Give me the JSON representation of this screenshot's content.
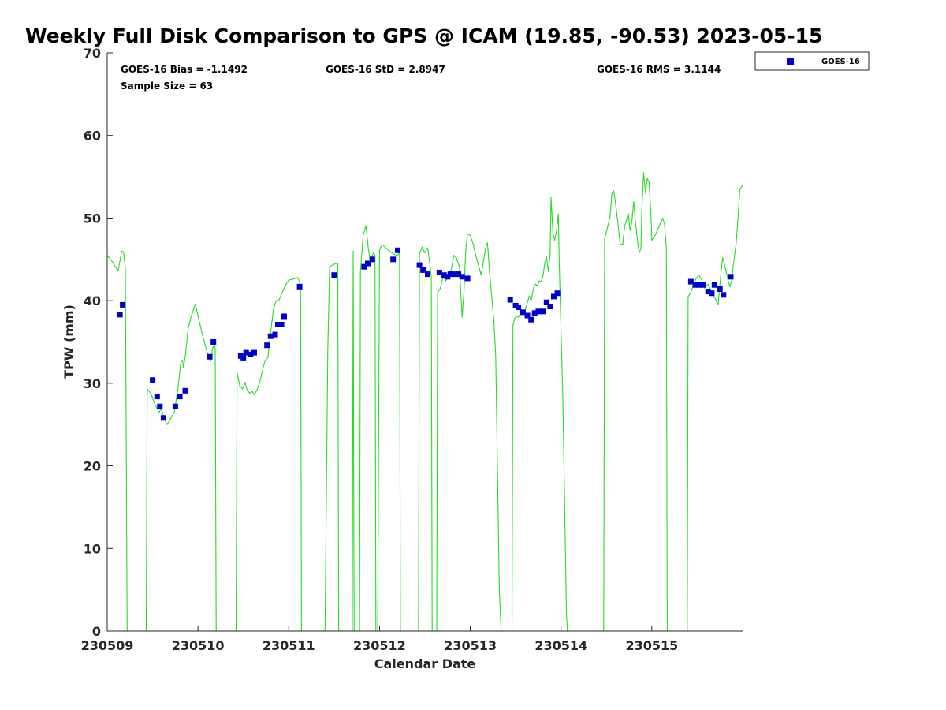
{
  "chart_data": {
    "type": "scatter",
    "title": "Weekly Full Disk Comparison to GPS @ ICAM (19.85, -90.53) 2023-05-15",
    "xlabel": "Calendar Date",
    "ylabel": "TPW (mm)",
    "xlim": [
      0,
      7
    ],
    "ylim": [
      0,
      70
    ],
    "x_ticks": [
      {
        "value": 0,
        "label": "230509"
      },
      {
        "value": 1,
        "label": "230510"
      },
      {
        "value": 2,
        "label": "230511"
      },
      {
        "value": 3,
        "label": "230512"
      },
      {
        "value": 4,
        "label": "230513"
      },
      {
        "value": 5,
        "label": "230514"
      },
      {
        "value": 6,
        "label": "230515"
      }
    ],
    "y_ticks": [
      0,
      10,
      20,
      30,
      40,
      50,
      60,
      70
    ],
    "stats": {
      "bias": "GOES-16 Bias = -1.1492",
      "std": "GOES-16 StD = 2.8947",
      "rms": "GOES-16 RMS = 3.1144",
      "sample": "Sample Size = 63"
    },
    "legend": {
      "placement": "top-right-outside",
      "entries": [
        "GOES-16"
      ]
    },
    "colors": {
      "goes": "#0000cc",
      "gps_line": "#22dd22"
    },
    "series": [
      {
        "name": "GOES-16",
        "marker": "square",
        "points": [
          [
            0.14,
            38.3
          ],
          [
            0.17,
            39.5
          ],
          [
            0.5,
            30.4
          ],
          [
            0.55,
            28.4
          ],
          [
            0.58,
            27.2
          ],
          [
            0.62,
            25.8
          ],
          [
            0.75,
            27.2
          ],
          [
            0.8,
            28.4
          ],
          [
            0.86,
            29.1
          ],
          [
            1.13,
            33.2
          ],
          [
            1.17,
            35.0
          ],
          [
            1.47,
            33.3
          ],
          [
            1.5,
            33.1
          ],
          [
            1.53,
            33.7
          ],
          [
            1.58,
            33.5
          ],
          [
            1.62,
            33.7
          ],
          [
            1.76,
            34.6
          ],
          [
            1.8,
            35.7
          ],
          [
            1.85,
            35.9
          ],
          [
            1.88,
            37.1
          ],
          [
            1.92,
            37.1
          ],
          [
            1.95,
            38.1
          ],
          [
            2.12,
            41.7
          ],
          [
            2.5,
            43.1
          ],
          [
            2.83,
            44.1
          ],
          [
            2.87,
            44.5
          ],
          [
            2.92,
            45.0
          ],
          [
            3.15,
            45.0
          ],
          [
            3.2,
            46.1
          ],
          [
            3.44,
            44.3
          ],
          [
            3.48,
            43.7
          ],
          [
            3.53,
            43.2
          ],
          [
            3.66,
            43.4
          ],
          [
            3.71,
            43.1
          ],
          [
            3.75,
            42.9
          ],
          [
            3.78,
            43.2
          ],
          [
            3.82,
            43.2
          ],
          [
            3.87,
            43.2
          ],
          [
            3.91,
            42.9
          ],
          [
            3.97,
            42.7
          ],
          [
            4.44,
            40.1
          ],
          [
            4.5,
            39.4
          ],
          [
            4.53,
            39.2
          ],
          [
            4.58,
            38.6
          ],
          [
            4.63,
            38.2
          ],
          [
            4.67,
            37.7
          ],
          [
            4.71,
            38.5
          ],
          [
            4.75,
            38.7
          ],
          [
            4.8,
            38.7
          ],
          [
            4.84,
            39.8
          ],
          [
            4.88,
            39.3
          ],
          [
            4.92,
            40.5
          ],
          [
            4.96,
            40.9
          ],
          [
            6.43,
            42.3
          ],
          [
            6.48,
            41.9
          ],
          [
            6.52,
            41.9
          ],
          [
            6.57,
            41.9
          ],
          [
            6.62,
            41.1
          ],
          [
            6.66,
            40.9
          ],
          [
            6.69,
            41.9
          ],
          [
            6.75,
            41.4
          ],
          [
            6.79,
            40.7
          ],
          [
            6.87,
            42.9
          ]
        ]
      },
      {
        "marker": "line",
        "segments": [
          [
            [
              0.0,
              45.5
            ],
            [
              0.05,
              44.8
            ],
            [
              0.12,
              43.6
            ],
            [
              0.16,
              46.0
            ],
            [
              0.18,
              45.9
            ],
            [
              0.2,
              44.0
            ],
            [
              0.22,
              0.0
            ]
          ],
          [
            [
              0.43,
              0.0
            ],
            [
              0.44,
              29.3
            ],
            [
              0.48,
              28.8
            ],
            [
              0.52,
              27.6
            ],
            [
              0.55,
              26.9
            ],
            [
              0.57,
              26.4
            ],
            [
              0.59,
              26.9
            ],
            [
              0.61,
              26.5
            ],
            [
              0.63,
              25.7
            ],
            [
              0.66,
              25.0
            ],
            [
              0.7,
              25.8
            ],
            [
              0.74,
              26.5
            ],
            [
              0.76,
              28.0
            ],
            [
              0.78,
              29.4
            ],
            [
              0.81,
              32.5
            ],
            [
              0.83,
              32.8
            ],
            [
              0.84,
              31.9
            ],
            [
              0.86,
              33.3
            ],
            [
              0.89,
              36.5
            ],
            [
              0.92,
              37.9
            ],
            [
              0.95,
              38.9
            ],
            [
              0.97,
              39.6
            ],
            [
              1.0,
              38.2
            ],
            [
              1.05,
              35.8
            ],
            [
              1.1,
              33.8
            ],
            [
              1.14,
              32.7
            ],
            [
              1.16,
              34.2
            ],
            [
              1.18,
              34.8
            ],
            [
              1.19,
              34.2
            ],
            [
              1.2,
              0.0
            ]
          ],
          [
            [
              1.42,
              0.0
            ],
            [
              1.43,
              31.3
            ],
            [
              1.46,
              29.7
            ],
            [
              1.49,
              29.3
            ],
            [
              1.52,
              30.1
            ],
            [
              1.54,
              29.2
            ],
            [
              1.57,
              28.8
            ],
            [
              1.6,
              29.0
            ],
            [
              1.62,
              28.6
            ],
            [
              1.65,
              29.2
            ],
            [
              1.68,
              30.1
            ],
            [
              1.71,
              31.5
            ],
            [
              1.74,
              32.8
            ],
            [
              1.77,
              33.1
            ],
            [
              1.8,
              36.1
            ],
            [
              1.83,
              38.9
            ],
            [
              1.86,
              40.0
            ],
            [
              1.89,
              40.0
            ],
            [
              1.92,
              40.8
            ],
            [
              1.96,
              41.8
            ],
            [
              2.0,
              42.5
            ],
            [
              2.05,
              42.6
            ],
            [
              2.1,
              42.8
            ],
            [
              2.13,
              41.9
            ],
            [
              2.14,
              0.0
            ]
          ],
          [
            [
              2.4,
              0.0
            ],
            [
              2.43,
              34.0
            ],
            [
              2.45,
              44.1
            ],
            [
              2.48,
              44.3
            ],
            [
              2.52,
              44.5
            ],
            [
              2.54,
              44.5
            ],
            [
              2.55,
              0.0
            ]
          ],
          [
            [
              2.7,
              0.0
            ],
            [
              2.71,
              46.0
            ],
            [
              2.72,
              0.0
            ]
          ],
          [
            [
              2.78,
              0.0
            ],
            [
              2.79,
              43.5
            ],
            [
              2.82,
              47.9
            ],
            [
              2.85,
              49.1
            ],
            [
              2.88,
              46.0
            ],
            [
              2.9,
              44.7
            ],
            [
              2.93,
              45.8
            ],
            [
              2.95,
              45.5
            ],
            [
              2.96,
              0.0
            ]
          ],
          [
            [
              2.98,
              0.0
            ],
            [
              3.0,
              46.2
            ],
            [
              3.03,
              46.8
            ],
            [
              3.06,
              46.5
            ],
            [
              3.1,
              46.1
            ],
            [
              3.15,
              45.7
            ],
            [
              3.2,
              45.4
            ],
            [
              3.22,
              46.1
            ],
            [
              3.23,
              0.0
            ]
          ],
          [
            [
              3.43,
              0.0
            ],
            [
              3.44,
              45.7
            ],
            [
              3.47,
              46.5
            ],
            [
              3.5,
              45.8
            ],
            [
              3.53,
              46.4
            ],
            [
              3.55,
              44.8
            ],
            [
              3.57,
              42.9
            ],
            [
              3.58,
              0.0
            ]
          ],
          [
            [
              3.63,
              0.0
            ],
            [
              3.64,
              41.0
            ],
            [
              3.67,
              41.5
            ],
            [
              3.7,
              42.9
            ],
            [
              3.73,
              42.4
            ],
            [
              3.76,
              42.9
            ],
            [
              3.79,
              43.8
            ],
            [
              3.82,
              45.5
            ],
            [
              3.85,
              45.1
            ],
            [
              3.88,
              44.1
            ],
            [
              3.9,
              40.0
            ],
            [
              3.91,
              38.0
            ],
            [
              3.93,
              41.0
            ],
            [
              3.95,
              46.1
            ],
            [
              3.97,
              48.1
            ],
            [
              4.0,
              47.9
            ],
            [
              4.03,
              46.9
            ],
            [
              4.07,
              45.1
            ],
            [
              4.12,
              43.1
            ],
            [
              4.17,
              46.4
            ],
            [
              4.19,
              47.0
            ],
            [
              4.21,
              43.7
            ],
            [
              4.23,
              41.2
            ],
            [
              4.26,
              37.5
            ],
            [
              4.28,
              33.4
            ],
            [
              4.32,
              5.0
            ],
            [
              4.34,
              0.0
            ]
          ],
          [
            [
              4.46,
              0.0
            ],
            [
              4.47,
              37.0
            ],
            [
              4.49,
              37.9
            ],
            [
              4.51,
              38.1
            ],
            [
              4.53,
              38.0
            ],
            [
              4.56,
              38.7
            ],
            [
              4.59,
              38.4
            ],
            [
              4.62,
              39.4
            ],
            [
              4.65,
              40.6
            ],
            [
              4.67,
              40.0
            ],
            [
              4.7,
              41.7
            ],
            [
              4.72,
              42.0
            ],
            [
              4.74,
              41.8
            ],
            [
              4.76,
              42.4
            ],
            [
              4.78,
              42.3
            ],
            [
              4.8,
              42.9
            ],
            [
              4.82,
              44.5
            ],
            [
              4.84,
              45.3
            ],
            [
              4.86,
              43.5
            ],
            [
              4.88,
              45.7
            ],
            [
              4.89,
              52.5
            ],
            [
              4.91,
              48.2
            ],
            [
              4.93,
              47.3
            ],
            [
              4.95,
              48.5
            ],
            [
              4.97,
              50.5
            ],
            [
              4.98,
              44.6
            ],
            [
              5.02,
              28.0
            ],
            [
              5.06,
              2.0
            ],
            [
              5.07,
              0.0
            ]
          ],
          [
            [
              5.47,
              0.0
            ],
            [
              5.48,
              47.5
            ],
            [
              5.51,
              48.8
            ],
            [
              5.54,
              50.2
            ],
            [
              5.56,
              53.0
            ],
            [
              5.58,
              53.3
            ],
            [
              5.6,
              51.8
            ],
            [
              5.63,
              49.0
            ],
            [
              5.65,
              46.9
            ],
            [
              5.68,
              46.8
            ],
            [
              5.7,
              49.0
            ],
            [
              5.72,
              49.7
            ],
            [
              5.74,
              50.6
            ],
            [
              5.76,
              48.5
            ],
            [
              5.78,
              49.5
            ],
            [
              5.8,
              52.0
            ],
            [
              5.82,
              49.5
            ],
            [
              5.84,
              47.5
            ],
            [
              5.86,
              45.8
            ],
            [
              5.88,
              46.3
            ],
            [
              5.89,
              51.0
            ],
            [
              5.91,
              55.5
            ],
            [
              5.93,
              53.0
            ],
            [
              5.95,
              54.8
            ],
            [
              5.97,
              54.3
            ],
            [
              5.99,
              50.5
            ],
            [
              6.0,
              47.3
            ],
            [
              6.04,
              48.0
            ],
            [
              6.08,
              49.0
            ],
            [
              6.12,
              50.0
            ],
            [
              6.14,
              49.2
            ],
            [
              6.16,
              46.3
            ],
            [
              6.17,
              0.0
            ]
          ],
          [
            [
              6.39,
              0.0
            ],
            [
              6.4,
              40.5
            ],
            [
              6.43,
              41.0
            ],
            [
              6.46,
              42.0
            ],
            [
              6.49,
              42.7
            ],
            [
              6.52,
              43.1
            ],
            [
              6.55,
              42.5
            ],
            [
              6.58,
              41.5
            ],
            [
              6.62,
              42.0
            ],
            [
              6.66,
              41.0
            ],
            [
              6.7,
              40.2
            ],
            [
              6.73,
              39.5
            ],
            [
              6.76,
              43.2
            ],
            [
              6.78,
              45.2
            ],
            [
              6.8,
              44.4
            ],
            [
              6.82,
              43.5
            ],
            [
              6.84,
              42.4
            ],
            [
              6.86,
              41.7
            ],
            [
              6.88,
              42.5
            ],
            [
              6.9,
              44.5
            ],
            [
              6.93,
              47.0
            ],
            [
              6.95,
              50.0
            ],
            [
              6.97,
              53.5
            ],
            [
              7.0,
              54.0
            ]
          ]
        ]
      }
    ]
  }
}
